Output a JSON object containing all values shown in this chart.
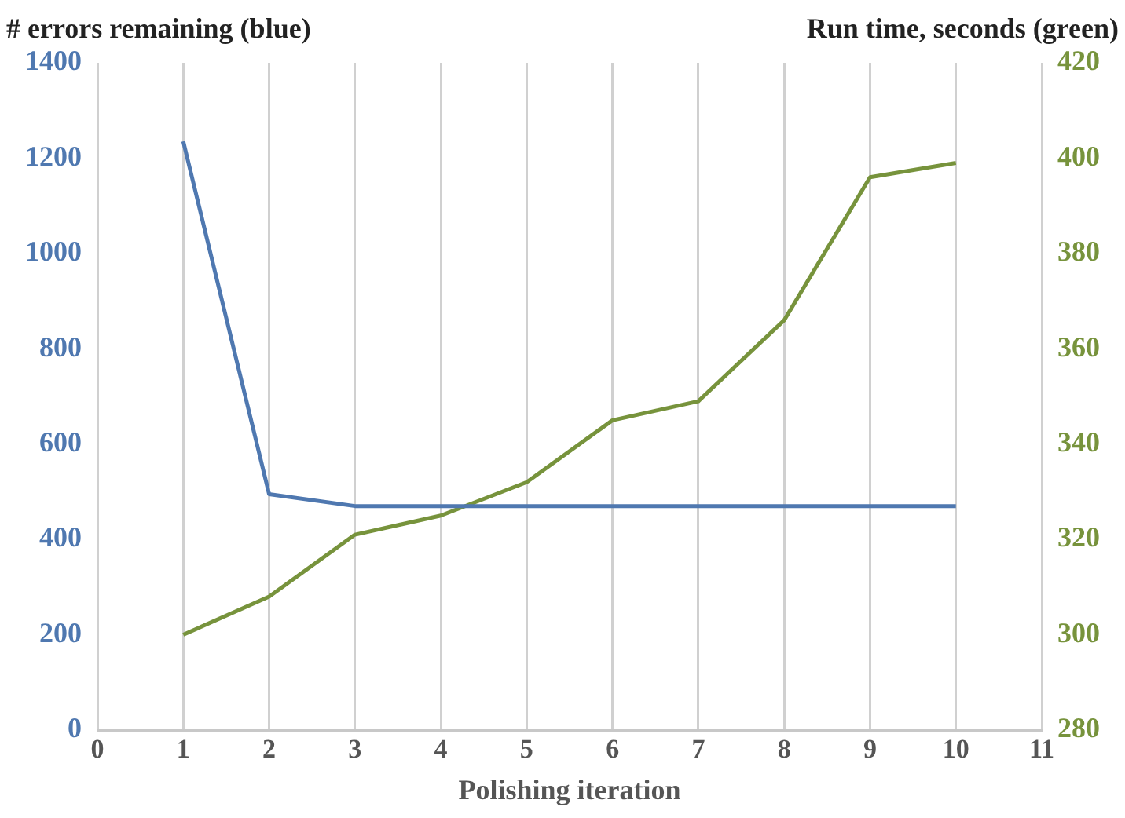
{
  "chart_data": {
    "type": "line",
    "xlabel": "Polishing iteration",
    "ylabel": "# errors remaining (blue)",
    "y2label": "Run time, seconds (green)",
    "x": [
      1,
      2,
      3,
      4,
      5,
      6,
      7,
      8,
      9,
      10
    ],
    "series": [
      {
        "color": "#4f78b0",
        "values": [
          1235,
          495,
          470,
          470,
          470,
          470,
          470,
          470,
          470,
          470
        ]
      },
      {
        "color": "#77933c",
        "axis": "y2",
        "values": [
          300,
          308,
          321,
          325,
          332,
          345,
          349,
          366,
          396,
          399
        ]
      }
    ],
    "xlim": [
      0,
      11
    ],
    "xticks": [
      0,
      1,
      2,
      3,
      4,
      5,
      6,
      7,
      8,
      9,
      10,
      11
    ],
    "ylim": [
      0,
      1400
    ],
    "yticks": [
      0,
      200,
      400,
      600,
      800,
      1000,
      1200,
      1400
    ],
    "y2lim": [
      280,
      420
    ],
    "y2ticks": [
      280,
      300,
      320,
      340,
      360,
      380,
      400,
      420
    ],
    "grid": "x",
    "legend": false,
    "marker": "none",
    "line_style": "solid"
  }
}
